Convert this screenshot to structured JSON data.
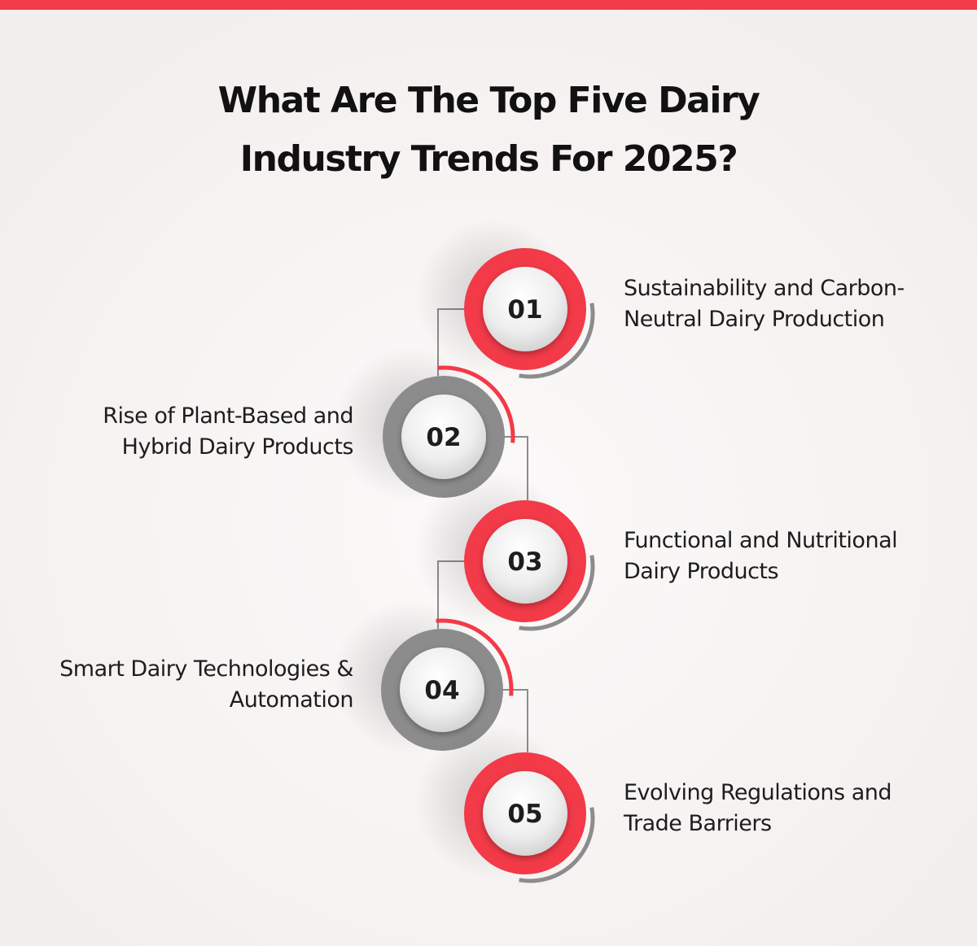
{
  "title": {
    "lines": [
      "What Are The Top Five Dairy",
      "Industry Trends For 2025?"
    ]
  },
  "items": [
    {
      "number": "01",
      "lines": [
        "Sustainability and Carbon-",
        "Neutral Dairy Production"
      ]
    },
    {
      "number": "02",
      "lines": [
        "Rise of Plant-Based and",
        "Hybrid Dairy Products"
      ]
    },
    {
      "number": "03",
      "lines": [
        "Functional and Nutritional",
        "Dairy Products"
      ]
    },
    {
      "number": "04",
      "lines": [
        "Smart Dairy Technologies &",
        "Automation"
      ]
    },
    {
      "number": "05",
      "lines": [
        "Evolving Regulations and",
        "Trade Barriers"
      ]
    }
  ]
}
